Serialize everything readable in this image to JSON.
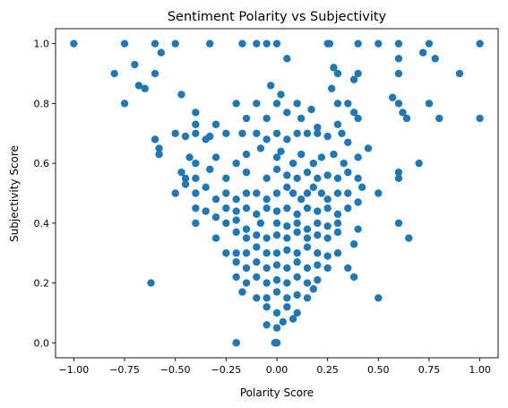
{
  "chart_data": {
    "type": "scatter",
    "title": "Sentiment Polarity vs Subjectivity",
    "xlabel": "Polarity Score",
    "ylabel": "Subjectivity Score",
    "xlim": [
      -1.09,
      1.09
    ],
    "ylim": [
      -0.05,
      1.05
    ],
    "xticks": [
      -1.0,
      -0.75,
      -0.5,
      -0.25,
      0.0,
      0.25,
      0.5,
      0.75,
      1.0
    ],
    "xtick_labels": [
      "−1.00",
      "−0.75",
      "−0.50",
      "−0.25",
      "0.00",
      "0.25",
      "0.50",
      "0.75",
      "1.00"
    ],
    "yticks": [
      0.0,
      0.2,
      0.4,
      0.6,
      0.8,
      1.0
    ],
    "ytick_labels": [
      "0.0",
      "0.2",
      "0.4",
      "0.6",
      "0.8",
      "1.0"
    ],
    "grid": false,
    "marker_color": "#1f77b4",
    "points": [
      [
        -1.0,
        1.0
      ],
      [
        -0.75,
        1.0
      ],
      [
        -0.6,
        1.0
      ],
      [
        -0.5,
        1.0
      ],
      [
        -0.33,
        1.0
      ],
      [
        -0.17,
        1.0
      ],
      [
        -0.1,
        1.0
      ],
      [
        0.0,
        1.0
      ],
      [
        0.25,
        1.0
      ],
      [
        0.4,
        1.0
      ],
      [
        0.5,
        1.0
      ],
      [
        0.6,
        1.0
      ],
      [
        0.75,
        1.0
      ],
      [
        1.0,
        1.0
      ],
      [
        -0.05,
        1.0
      ],
      [
        0.26,
        1.0
      ],
      [
        -0.8,
        0.9
      ],
      [
        -0.7,
        0.93
      ],
      [
        -0.68,
        0.86
      ],
      [
        -0.65,
        0.85
      ],
      [
        -0.57,
        0.97
      ],
      [
        -0.6,
        0.9
      ],
      [
        -0.75,
        0.8
      ],
      [
        -0.47,
        0.83
      ],
      [
        -0.2,
        0.8
      ],
      [
        -0.1,
        0.8
      ],
      [
        0.02,
        0.83
      ],
      [
        0.05,
        0.95
      ],
      [
        -0.03,
        0.86
      ],
      [
        0.0,
        0.8
      ],
      [
        0.1,
        0.8
      ],
      [
        0.28,
        0.92
      ],
      [
        0.3,
        0.9
      ],
      [
        0.35,
        0.8
      ],
      [
        0.38,
        0.88
      ],
      [
        0.4,
        0.9
      ],
      [
        0.6,
        0.95
      ],
      [
        0.6,
        0.9
      ],
      [
        0.72,
        0.97
      ],
      [
        0.78,
        0.95
      ],
      [
        0.9,
        0.9
      ],
      [
        0.57,
        0.82
      ],
      [
        0.6,
        0.8
      ],
      [
        0.62,
        0.77
      ],
      [
        0.64,
        0.75
      ],
      [
        0.75,
        0.8
      ],
      [
        0.8,
        0.75
      ],
      [
        1.0,
        0.75
      ],
      [
        0.27,
        0.85
      ],
      [
        0.3,
        0.8
      ],
      [
        -0.4,
        0.77
      ],
      [
        -0.4,
        0.73
      ],
      [
        -0.3,
        0.73
      ],
      [
        -0.15,
        0.75
      ],
      [
        -0.05,
        0.75
      ],
      [
        0.05,
        0.77
      ],
      [
        0.12,
        0.75
      ],
      [
        0.17,
        0.78
      ],
      [
        0.2,
        0.72
      ],
      [
        0.3,
        0.73
      ],
      [
        0.38,
        0.77
      ],
      [
        0.4,
        0.75
      ],
      [
        -0.6,
        0.68
      ],
      [
        -0.58,
        0.65
      ],
      [
        -0.5,
        0.7
      ],
      [
        -0.45,
        0.69
      ],
      [
        -0.4,
        0.7
      ],
      [
        -0.35,
        0.68
      ],
      [
        -0.33,
        0.69
      ],
      [
        -0.25,
        0.7
      ],
      [
        -0.17,
        0.7
      ],
      [
        -0.1,
        0.7
      ],
      [
        -0.05,
        0.68
      ],
      [
        0.0,
        0.7
      ],
      [
        0.05,
        0.68
      ],
      [
        0.1,
        0.7
      ],
      [
        0.15,
        0.7
      ],
      [
        0.2,
        0.7
      ],
      [
        0.25,
        0.69
      ],
      [
        0.32,
        0.7
      ],
      [
        0.35,
        0.67
      ],
      [
        -0.58,
        0.63
      ],
      [
        -0.43,
        0.62
      ],
      [
        -0.4,
        0.6
      ],
      [
        -0.3,
        0.62
      ],
      [
        -0.2,
        0.6
      ],
      [
        -0.15,
        0.63
      ],
      [
        -0.08,
        0.65
      ],
      [
        0.0,
        0.62
      ],
      [
        0.02,
        0.64
      ],
      [
        0.08,
        0.6
      ],
      [
        0.12,
        0.63
      ],
      [
        0.18,
        0.6
      ],
      [
        0.22,
        0.62
      ],
      [
        0.28,
        0.63
      ],
      [
        0.33,
        0.6
      ],
      [
        0.4,
        0.62
      ],
      [
        0.45,
        0.65
      ],
      [
        0.7,
        0.6
      ],
      [
        0.6,
        0.57
      ],
      [
        0.6,
        0.55
      ],
      [
        -0.47,
        0.57
      ],
      [
        -0.45,
        0.55
      ],
      [
        -0.4,
        0.55
      ],
      [
        -0.33,
        0.58
      ],
      [
        -0.25,
        0.55
      ],
      [
        -0.15,
        0.57
      ],
      [
        -0.05,
        0.55
      ],
      [
        0.0,
        0.58
      ],
      [
        0.05,
        0.56
      ],
      [
        0.1,
        0.55
      ],
      [
        0.15,
        0.57
      ],
      [
        0.2,
        0.55
      ],
      [
        0.25,
        0.56
      ],
      [
        0.3,
        0.55
      ],
      [
        0.35,
        0.57
      ],
      [
        0.4,
        0.55
      ],
      [
        0.42,
        0.52
      ],
      [
        -0.5,
        0.5
      ],
      [
        -0.45,
        0.53
      ],
      [
        -0.4,
        0.5
      ],
      [
        -0.35,
        0.52
      ],
      [
        -0.3,
        0.48
      ],
      [
        -0.25,
        0.5
      ],
      [
        -0.2,
        0.48
      ],
      [
        -0.15,
        0.5
      ],
      [
        -0.1,
        0.5
      ],
      [
        -0.05,
        0.48
      ],
      [
        0.0,
        0.5
      ],
      [
        0.05,
        0.52
      ],
      [
        0.08,
        0.5
      ],
      [
        0.12,
        0.48
      ],
      [
        0.15,
        0.5
      ],
      [
        0.18,
        0.52
      ],
      [
        0.22,
        0.5
      ],
      [
        0.25,
        0.48
      ],
      [
        0.3,
        0.5
      ],
      [
        0.35,
        0.5
      ],
      [
        0.5,
        0.5
      ],
      [
        0.4,
        0.47
      ],
      [
        -0.4,
        0.45
      ],
      [
        -0.35,
        0.44
      ],
      [
        -0.25,
        0.45
      ],
      [
        -0.2,
        0.44
      ],
      [
        -0.15,
        0.45
      ],
      [
        -0.1,
        0.43
      ],
      [
        -0.05,
        0.45
      ],
      [
        0.0,
        0.44
      ],
      [
        0.05,
        0.45
      ],
      [
        0.1,
        0.43
      ],
      [
        0.15,
        0.45
      ],
      [
        0.2,
        0.44
      ],
      [
        0.25,
        0.45
      ],
      [
        0.3,
        0.43
      ],
      [
        0.35,
        0.45
      ],
      [
        -0.4,
        0.4
      ],
      [
        -0.3,
        0.42
      ],
      [
        -0.25,
        0.4
      ],
      [
        -0.2,
        0.41
      ],
      [
        -0.15,
        0.38
      ],
      [
        -0.08,
        0.4
      ],
      [
        0.0,
        0.4
      ],
      [
        0.05,
        0.39
      ],
      [
        0.1,
        0.4
      ],
      [
        0.15,
        0.38
      ],
      [
        0.2,
        0.4
      ],
      [
        0.25,
        0.39
      ],
      [
        0.3,
        0.4
      ],
      [
        0.4,
        0.38
      ],
      [
        0.6,
        0.4
      ],
      [
        0.65,
        0.35
      ],
      [
        -0.3,
        0.35
      ],
      [
        -0.2,
        0.37
      ],
      [
        -0.15,
        0.35
      ],
      [
        -0.1,
        0.36
      ],
      [
        -0.05,
        0.35
      ],
      [
        0.0,
        0.36
      ],
      [
        0.05,
        0.35
      ],
      [
        0.1,
        0.37
      ],
      [
        0.15,
        0.35
      ],
      [
        0.2,
        0.36
      ],
      [
        0.25,
        0.35
      ],
      [
        0.3,
        0.37
      ],
      [
        0.38,
        0.33
      ],
      [
        -0.25,
        0.3
      ],
      [
        -0.2,
        0.3
      ],
      [
        -0.15,
        0.3
      ],
      [
        -0.1,
        0.32
      ],
      [
        -0.05,
        0.3
      ],
      [
        0.0,
        0.3
      ],
      [
        0.05,
        0.31
      ],
      [
        0.1,
        0.3
      ],
      [
        0.15,
        0.32
      ],
      [
        0.2,
        0.3
      ],
      [
        0.25,
        0.29
      ],
      [
        0.3,
        0.3
      ],
      [
        -0.2,
        0.27
      ],
      [
        -0.15,
        0.25
      ],
      [
        -0.1,
        0.27
      ],
      [
        -0.05,
        0.25
      ],
      [
        0.0,
        0.26
      ],
      [
        0.05,
        0.25
      ],
      [
        0.1,
        0.27
      ],
      [
        0.15,
        0.25
      ],
      [
        0.2,
        0.26
      ],
      [
        0.25,
        0.25
      ],
      [
        0.35,
        0.25
      ],
      [
        0.38,
        0.22
      ],
      [
        -0.62,
        0.2
      ],
      [
        -0.2,
        0.22
      ],
      [
        -0.15,
        0.2
      ],
      [
        -0.1,
        0.22
      ],
      [
        -0.05,
        0.2
      ],
      [
        0.0,
        0.21
      ],
      [
        0.05,
        0.2
      ],
      [
        0.1,
        0.22
      ],
      [
        0.15,
        0.2
      ],
      [
        0.2,
        0.21
      ],
      [
        0.18,
        0.18
      ],
      [
        -0.17,
        0.17
      ],
      [
        -0.1,
        0.15
      ],
      [
        -0.05,
        0.15
      ],
      [
        0.0,
        0.17
      ],
      [
        0.05,
        0.15
      ],
      [
        0.1,
        0.16
      ],
      [
        0.15,
        0.15
      ],
      [
        0.5,
        0.15
      ],
      [
        -0.05,
        0.12
      ],
      [
        0.0,
        0.1
      ],
      [
        0.05,
        0.12
      ],
      [
        0.1,
        0.1
      ],
      [
        0.08,
        0.08
      ],
      [
        0.03,
        0.07
      ],
      [
        -0.05,
        0.06
      ],
      [
        0.0,
        0.05
      ],
      [
        -0.2,
        0.0
      ],
      [
        -0.2,
        0.0
      ],
      [
        0.0,
        0.0
      ],
      [
        0.0,
        0.0
      ],
      [
        -0.01,
        0.0
      ]
    ]
  }
}
